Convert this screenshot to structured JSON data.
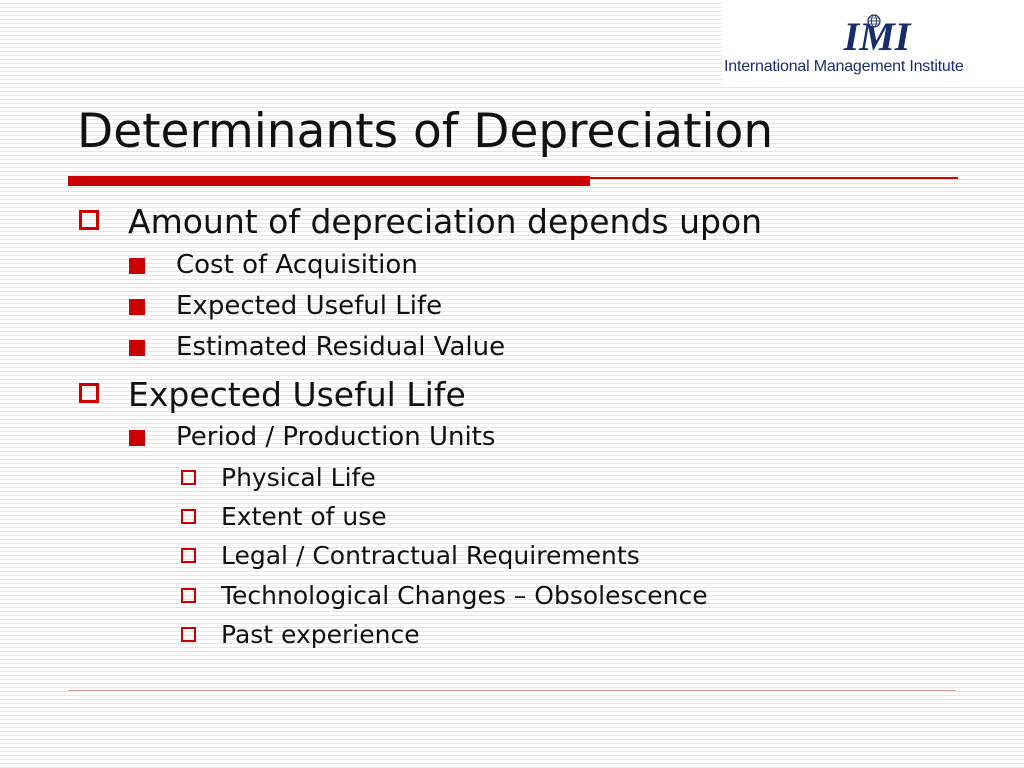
{
  "logo": {
    "wordmark": "IMI",
    "institute": "International Management Institute"
  },
  "slide": {
    "title": "Determinants of Depreciation",
    "bullets": [
      {
        "text": "Amount of depreciation depends upon"
      },
      {
        "text": "Cost of Acquisition"
      },
      {
        "text": "Expected Useful Life"
      },
      {
        "text": "Estimated Residual Value"
      },
      {
        "text": "Expected Useful Life"
      },
      {
        "text": "Period / Production Units"
      },
      {
        "text": "Physical Life"
      },
      {
        "text": "Extent of use"
      },
      {
        "text": "Legal / Contractual Requirements"
      },
      {
        "text": "Technological Changes – Obsolescence"
      },
      {
        "text": "Past experience"
      }
    ]
  },
  "colors": {
    "accent": "#cc0000",
    "logo_navy": "#1a2d6b"
  }
}
